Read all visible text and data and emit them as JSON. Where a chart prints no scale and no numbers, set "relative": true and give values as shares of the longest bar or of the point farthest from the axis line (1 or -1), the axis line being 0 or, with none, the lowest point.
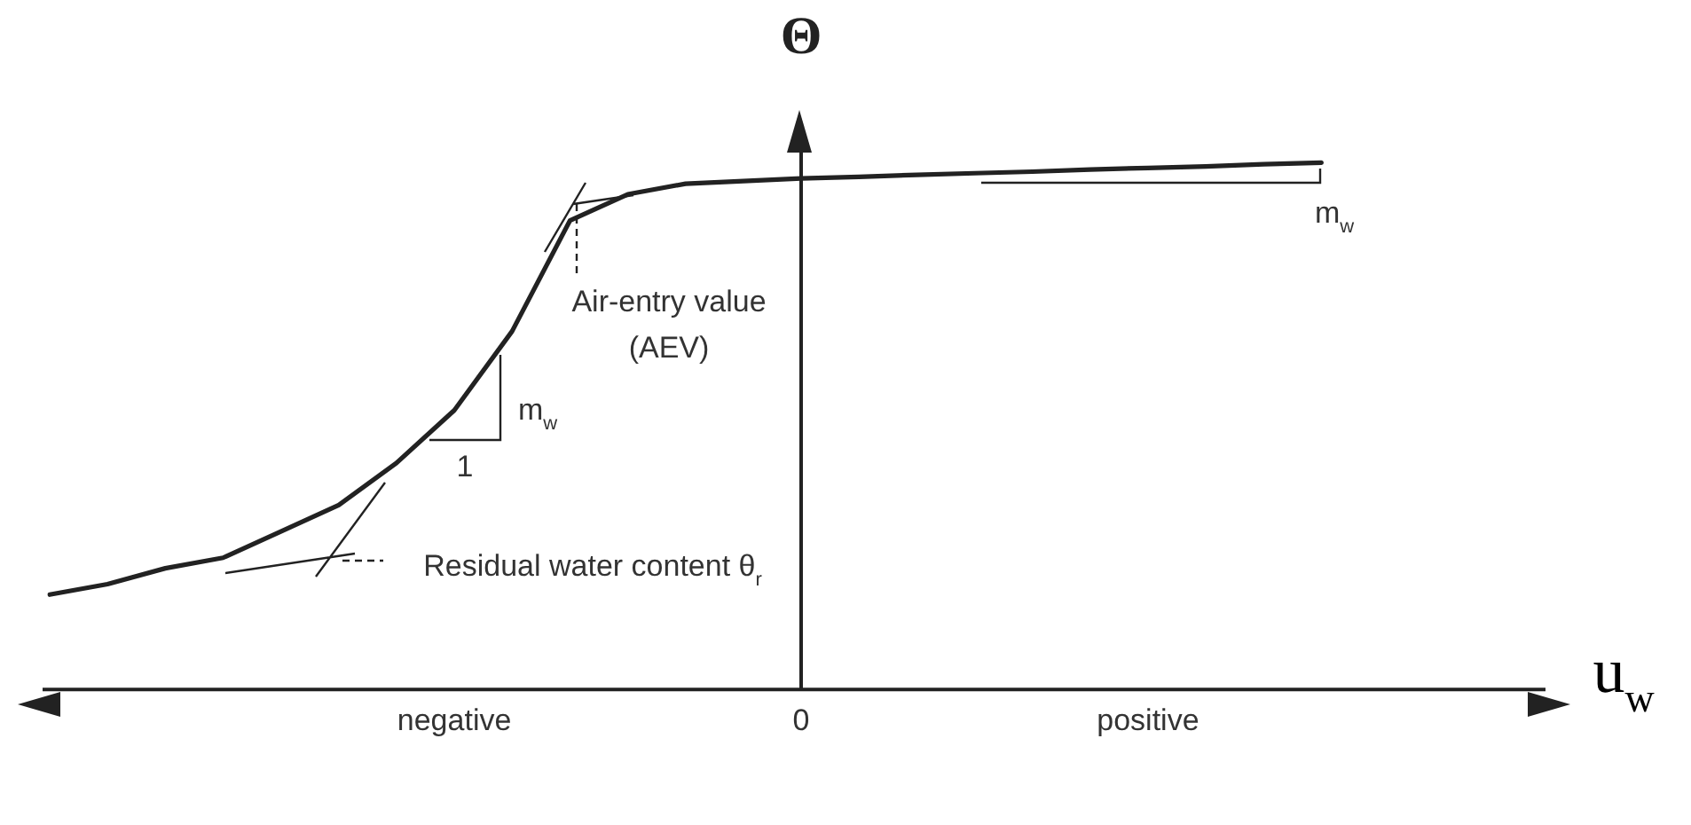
{
  "chart_data": {
    "type": "line",
    "relative": true,
    "xlabel": "u$_{w}$",
    "ylabel": "Θ",
    "categories": [
      null,
      null,
      null,
      null,
      null,
      null,
      null,
      "negative",
      null,
      null,
      null,
      null,
      null,
      "0",
      null,
      null,
      null,
      null,
      null,
      "positive",
      null,
      null,
      null,
      null,
      null,
      null,
      null
    ],
    "series": [
      {
        "color": "#222222",
        "values": [
          0.18,
          0.2,
          0.23,
          0.25,
          0.3,
          0.35,
          0.43,
          0.53,
          0.68,
          0.89,
          0.94,
          0.96,
          0.965,
          0.97,
          0.973,
          0.977,
          0.98,
          0.983,
          0.987,
          0.99,
          0.993,
          0.997,
          1.0,
          null,
          null,
          null,
          null
        ]
      }
    ],
    "ref_lines": [
      {
        "axis": "x",
        "value": "0"
      }
    ],
    "annotations": [
      "Air-entry value (AEV)",
      "m$_{w}$",
      "1",
      "Residual water content θ$_{r}$",
      "m$_{w}$"
    ],
    "grid": false,
    "legend": false,
    "marker": "none",
    "line_style": "solid"
  }
}
